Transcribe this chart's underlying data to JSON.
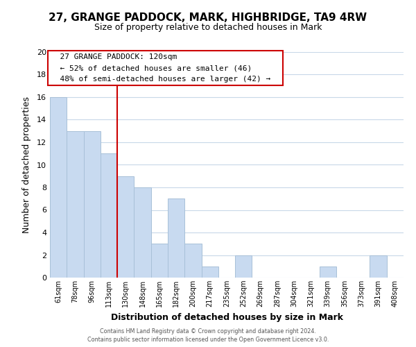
{
  "title_line1": "27, GRANGE PADDOCK, MARK, HIGHBRIDGE, TA9 4RW",
  "title_line2": "Size of property relative to detached houses in Mark",
  "xlabel": "Distribution of detached houses by size in Mark",
  "ylabel": "Number of detached properties",
  "bar_labels": [
    "61sqm",
    "78sqm",
    "96sqm",
    "113sqm",
    "130sqm",
    "148sqm",
    "165sqm",
    "182sqm",
    "200sqm",
    "217sqm",
    "235sqm",
    "252sqm",
    "269sqm",
    "287sqm",
    "304sqm",
    "321sqm",
    "339sqm",
    "356sqm",
    "373sqm",
    "391sqm",
    "408sqm"
  ],
  "bar_values": [
    16,
    13,
    13,
    11,
    9,
    8,
    3,
    7,
    3,
    1,
    0,
    2,
    0,
    0,
    0,
    0,
    1,
    0,
    0,
    2,
    0
  ],
  "bar_color": "#c8daf0",
  "bar_edge_color": "#a8c0d8",
  "vline_x": 3.5,
  "vline_color": "#cc0000",
  "ylim": [
    0,
    20
  ],
  "yticks": [
    0,
    2,
    4,
    6,
    8,
    10,
    12,
    14,
    16,
    18,
    20
  ],
  "annotation_title": "27 GRANGE PADDOCK: 120sqm",
  "annotation_line1": "← 52% of detached houses are smaller (46)",
  "annotation_line2": "48% of semi-detached houses are larger (42) →",
  "annotation_box_color": "#ffffff",
  "annotation_box_edge": "#cc0000",
  "footer_line1": "Contains HM Land Registry data © Crown copyright and database right 2024.",
  "footer_line2": "Contains public sector information licensed under the Open Government Licence v3.0.",
  "background_color": "#ffffff",
  "grid_color": "#c8d8e8"
}
